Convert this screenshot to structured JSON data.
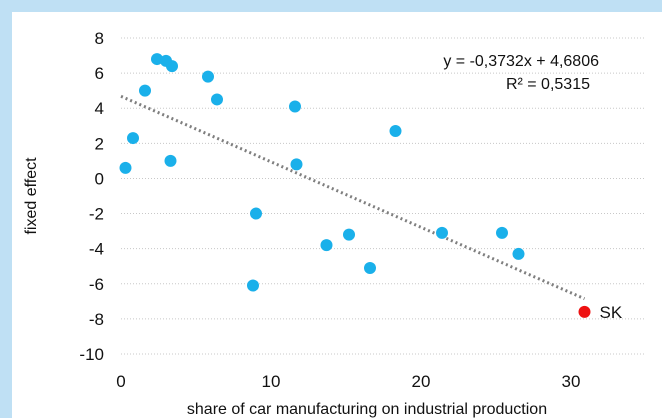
{
  "chart_data": {
    "type": "scatter",
    "xlabel": "share of car manufacturing on industrial production",
    "ylabel": "fixed effect",
    "xlim": [
      0,
      35
    ],
    "ylim": [
      -10,
      8
    ],
    "x_ticks": [
      0,
      10,
      20,
      30
    ],
    "y_ticks": [
      8,
      6,
      4,
      2,
      0,
      -2,
      -4,
      -6,
      -8,
      -10
    ],
    "grid": "horizontal dotted",
    "series": [
      {
        "color": "#1ab0ea",
        "points": [
          {
            "x": 0.3,
            "y": 0.6
          },
          {
            "x": 0.8,
            "y": 2.3
          },
          {
            "x": 1.6,
            "y": 5.0
          },
          {
            "x": 2.4,
            "y": 6.8
          },
          {
            "x": 3.0,
            "y": 6.7
          },
          {
            "x": 3.3,
            "y": 1.0
          },
          {
            "x": 3.4,
            "y": 6.4
          },
          {
            "x": 5.8,
            "y": 5.8
          },
          {
            "x": 6.4,
            "y": 4.5
          },
          {
            "x": 8.8,
            "y": -6.1
          },
          {
            "x": 9.0,
            "y": -2.0
          },
          {
            "x": 11.6,
            "y": 4.1
          },
          {
            "x": 11.7,
            "y": 0.8
          },
          {
            "x": 13.7,
            "y": -3.8
          },
          {
            "x": 15.2,
            "y": -3.2
          },
          {
            "x": 16.6,
            "y": -5.1
          },
          {
            "x": 18.3,
            "y": 2.7
          },
          {
            "x": 21.4,
            "y": -3.1
          },
          {
            "x": 25.4,
            "y": -3.1
          },
          {
            "x": 26.5,
            "y": -4.3
          }
        ]
      }
    ],
    "highlight": {
      "label": "SK",
      "x": 30.9,
      "y": -7.6,
      "color": "#ee1111"
    },
    "trendline": {
      "slope": -0.3732,
      "intercept": 4.6806,
      "x_range": [
        0,
        30.9
      ],
      "color": "#7f7f7f",
      "style": "dotted",
      "equation": "y = -0,3732x + 4,6806",
      "r_squared": "R² = 0,5315"
    }
  }
}
